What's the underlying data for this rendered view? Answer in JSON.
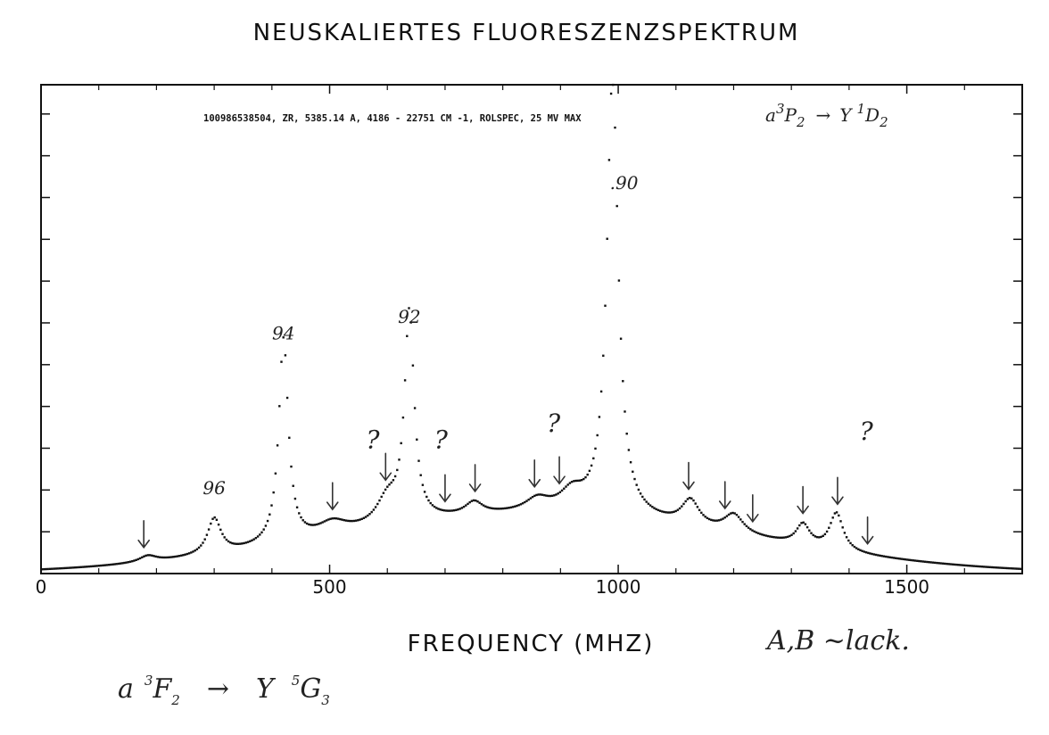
{
  "chart_data": {
    "type": "scatter",
    "title": "NEUSKALIERTES FLUORESZENZSPEKTRUM",
    "header_text": "100986538504, ZR, 5385.14 A, 4186 - 22751 CM -1, ROLSPEC, 25 MV MAX",
    "header_transition": {
      "lower": "a",
      "lower_sup": "3",
      "lower_term": "P",
      "lower_sub": "2",
      "arrow": "→",
      "upper": "Y",
      "upper_sup": "1",
      "upper_term": "D",
      "upper_sub": "2"
    },
    "xlabel": "FREQUENCY (MHZ)",
    "ylabel": "",
    "xlim": [
      0,
      1700
    ],
    "ylim": [
      0,
      1.17
    ],
    "x_ticks": [
      0,
      500,
      1000,
      1500
    ],
    "x_tick_labels": [
      "0",
      "500",
      "1000",
      "1500"
    ],
    "y_ticks": [
      0.1,
      0.2,
      0.3,
      0.4,
      0.5,
      0.6,
      0.7,
      0.8,
      0.9,
      1.0,
      1.1
    ],
    "grid": false,
    "legend": "none",
    "series_color": "#111111",
    "baseline": 0.0,
    "background": 0.14,
    "peaks": [
      {
        "x": 185,
        "height": 0.015,
        "width": 18
      },
      {
        "x": 300,
        "height": 0.085,
        "width": 14
      },
      {
        "x": 420,
        "height": 0.49,
        "width": 10
      },
      {
        "x": 505,
        "height": 0.03,
        "width": 30
      },
      {
        "x": 600,
        "height": 0.06,
        "width": 22
      },
      {
        "x": 638,
        "height": 0.5,
        "width": 10
      },
      {
        "x": 750,
        "height": 0.03,
        "width": 18
      },
      {
        "x": 860,
        "height": 0.03,
        "width": 25
      },
      {
        "x": 920,
        "height": 0.045,
        "width": 25
      },
      {
        "x": 990,
        "height": 1.05,
        "width": 12
      },
      {
        "x": 1125,
        "height": 0.06,
        "width": 18
      },
      {
        "x": 1200,
        "height": 0.045,
        "width": 20
      },
      {
        "x": 1320,
        "height": 0.05,
        "width": 14
      },
      {
        "x": 1378,
        "height": 0.09,
        "width": 14
      }
    ]
  },
  "annotations": {
    "peak_labels": [
      {
        "text": "96",
        "x": 300,
        "y": 0.19
      },
      {
        "text": "94",
        "x": 420,
        "y": 0.56
      },
      {
        "text": "92",
        "x": 638,
        "y": 0.6
      },
      {
        "text": ".90",
        "x": 1010,
        "y": 0.92
      }
    ],
    "question_marks": [
      {
        "text": "?",
        "x": 575,
        "y": 0.3
      },
      {
        "text": "?",
        "x": 693,
        "y": 0.3
      },
      {
        "text": "?",
        "x": 888,
        "y": 0.34
      },
      {
        "text": "?",
        "x": 1430,
        "y": 0.32
      }
    ],
    "arrows_at_x": [
      178,
      505,
      597,
      700,
      752,
      855,
      898,
      1122,
      1185,
      1233,
      1320,
      1380,
      1432
    ],
    "right_note": "A,B ~lack.",
    "bottom_note": {
      "lower": "a",
      "lower_sup": "3",
      "lower_term": "F",
      "lower_sub": "2",
      "arrow": "→",
      "upper": "Y",
      "upper_sup": "5",
      "upper_term": "G",
      "upper_sub": "3"
    }
  }
}
